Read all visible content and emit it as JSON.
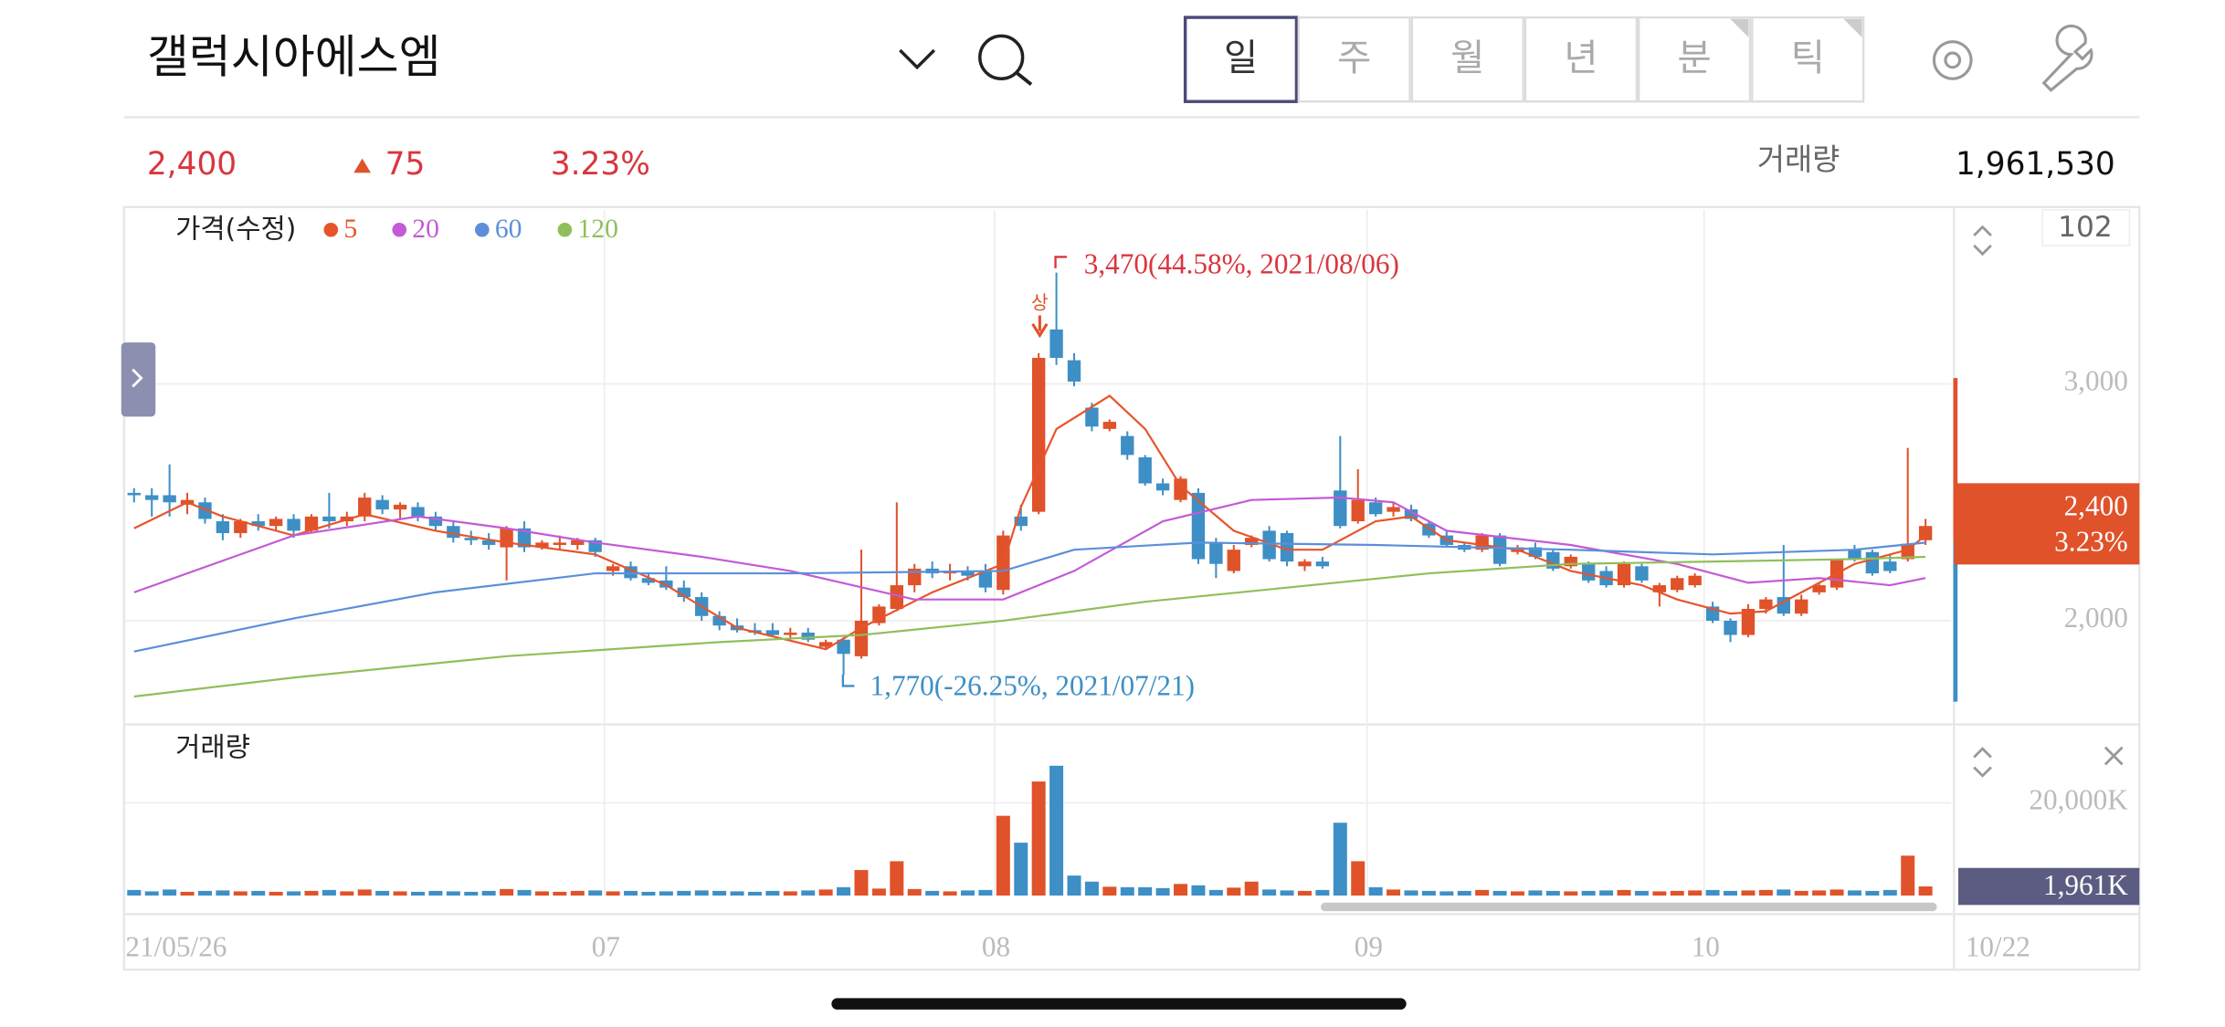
{
  "header": {
    "title": "갤럭시아에스엠",
    "tabs": [
      "일",
      "주",
      "월",
      "년",
      "분",
      "틱"
    ]
  },
  "quote": {
    "price": "2,400",
    "change": "75",
    "rate": "3.23%",
    "volume_label": "거래량",
    "volume": "1,961,530"
  },
  "annotations": {
    "high": "3,470(44.58%, 2021/08/06)",
    "low": "1,770(-26.25%, 2021/07/21)",
    "limit_up": "상",
    "counter": "102"
  },
  "chart_data": [
    {
      "type": "candlestick",
      "legend_title": "가격(수정)",
      "up_color": "#e0522a",
      "down_color": "#3d8fc6",
      "categories": [
        "21/05/26",
        null,
        null,
        null,
        null,
        null,
        null,
        null,
        null,
        null,
        null,
        null,
        null,
        null,
        null,
        null,
        null,
        null,
        null,
        null,
        null,
        null,
        null,
        null,
        null,
        null,
        null,
        "07",
        null,
        null,
        null,
        null,
        null,
        null,
        null,
        null,
        null,
        null,
        null,
        null,
        null,
        null,
        null,
        null,
        null,
        null,
        null,
        null,
        null,
        "08",
        null,
        null,
        null,
        null,
        null,
        null,
        null,
        null,
        null,
        null,
        null,
        null,
        null,
        null,
        null,
        null,
        null,
        null,
        null,
        null,
        "09",
        null,
        null,
        null,
        null,
        null,
        null,
        null,
        null,
        null,
        null,
        null,
        null,
        null,
        null,
        null,
        null,
        null,
        null,
        "10",
        null,
        null,
        null,
        null,
        null,
        null,
        null,
        null,
        null,
        null,
        null,
        "10/22"
      ],
      "open": [
        2540,
        2530,
        2530,
        2490,
        2500,
        2420,
        2370,
        2420,
        2400,
        2430,
        2380,
        2440,
        2420,
        2440,
        2510,
        2470,
        2480,
        2440,
        2400,
        2350,
        2340,
        2310,
        2390,
        2310,
        2320,
        2320,
        2340,
        2210,
        2230,
        2180,
        2170,
        2140,
        2100,
        2020,
        1980,
        1960,
        1960,
        1940,
        1950,
        1890,
        1920,
        1850,
        1990,
        2050,
        2150,
        2220,
        2200,
        2210,
        2210,
        2130,
        2440,
        2460,
        3230,
        3100,
        2900,
        2810,
        2780,
        2690,
        2580,
        2510,
        2540,
        2330,
        2210,
        2320,
        2380,
        2370,
        2230,
        2250,
        2550,
        2420,
        2500,
        2460,
        2470,
        2410,
        2360,
        2320,
        2300,
        2360,
        2290,
        2310,
        2290,
        2230,
        2240,
        2210,
        2150,
        2230,
        2120,
        2130,
        2150,
        2060,
        2000,
        1940,
        2050,
        2100,
        2030,
        2120,
        2140,
        2300,
        2290,
        2250,
        2260,
        2340
      ],
      "high": [
        2560,
        2560,
        2660,
        2540,
        2520,
        2450,
        2430,
        2450,
        2440,
        2450,
        2450,
        2540,
        2460,
        2540,
        2530,
        2500,
        2500,
        2460,
        2420,
        2380,
        2370,
        2400,
        2420,
        2340,
        2360,
        2350,
        2350,
        2240,
        2250,
        2200,
        2230,
        2170,
        2120,
        2040,
        2010,
        1990,
        1990,
        1970,
        1970,
        1920,
        1930,
        2300,
        2070,
        2500,
        2240,
        2250,
        2240,
        2230,
        2240,
        2380,
        2490,
        3130,
        3470,
        3130,
        2920,
        2850,
        2800,
        2700,
        2600,
        2610,
        2560,
        2350,
        2320,
        2360,
        2400,
        2380,
        2260,
        2270,
        2780,
        2640,
        2520,
        2500,
        2490,
        2420,
        2380,
        2330,
        2370,
        2370,
        2320,
        2330,
        2300,
        2280,
        2250,
        2230,
        2250,
        2240,
        2160,
        2190,
        2200,
        2080,
        2010,
        2070,
        2100,
        2320,
        2110,
        2160,
        2260,
        2320,
        2300,
        2280,
        2730,
        2430
      ],
      "low": [
        2500,
        2440,
        2440,
        2450,
        2410,
        2340,
        2350,
        2380,
        2380,
        2350,
        2370,
        2390,
        2400,
        2420,
        2450,
        2430,
        2420,
        2380,
        2330,
        2320,
        2300,
        2170,
        2290,
        2300,
        2300,
        2300,
        2270,
        2190,
        2170,
        2150,
        2130,
        2080,
        2000,
        1960,
        1950,
        1940,
        1930,
        1920,
        1910,
        1880,
        1770,
        1840,
        1980,
        2040,
        2120,
        2180,
        2170,
        2170,
        2120,
        2110,
        2380,
        2450,
        3080,
        2990,
        2800,
        2800,
        2680,
        2570,
        2530,
        2500,
        2240,
        2180,
        2200,
        2310,
        2250,
        2230,
        2210,
        2220,
        2390,
        2410,
        2440,
        2440,
        2420,
        2350,
        2310,
        2290,
        2290,
        2230,
        2280,
        2260,
        2210,
        2220,
        2160,
        2140,
        2140,
        2160,
        2060,
        2120,
        2140,
        1990,
        1910,
        1930,
        2030,
        2020,
        2020,
        2110,
        2130,
        2250,
        2190,
        2200,
        2250,
        2320
      ],
      "close": [
        2530,
        2510,
        2500,
        2510,
        2430,
        2370,
        2420,
        2400,
        2430,
        2380,
        2440,
        2420,
        2440,
        2520,
        2470,
        2490,
        2440,
        2400,
        2350,
        2340,
        2320,
        2390,
        2310,
        2330,
        2330,
        2340,
        2290,
        2230,
        2180,
        2160,
        2140,
        2100,
        2020,
        1980,
        1960,
        1950,
        1940,
        1950,
        1920,
        1910,
        1860,
        2000,
        2060,
        2150,
        2220,
        2200,
        2210,
        2190,
        2140,
        2360,
        2400,
        3110,
        3110,
        3010,
        2820,
        2840,
        2700,
        2580,
        2550,
        2600,
        2260,
        2240,
        2300,
        2350,
        2260,
        2250,
        2250,
        2230,
        2400,
        2510,
        2450,
        2480,
        2430,
        2360,
        2320,
        2300,
        2360,
        2240,
        2310,
        2270,
        2220,
        2270,
        2170,
        2150,
        2240,
        2170,
        2150,
        2180,
        2190,
        2000,
        1940,
        2050,
        2090,
        2030,
        2090,
        2150,
        2260,
        2260,
        2200,
        2210,
        2325,
        2400
      ],
      "series": [
        {
          "name": "5",
          "color": "#e8542a",
          "x": [
            0,
            3,
            5,
            9,
            13,
            17,
            21,
            26,
            30,
            34,
            39,
            41,
            45,
            49,
            50,
            52,
            55,
            57,
            59,
            62,
            65,
            67,
            70,
            72,
            74,
            78,
            81,
            85,
            87,
            90,
            92,
            94,
            97,
            100,
            101
          ],
          "values": [
            2390,
            2500,
            2440,
            2360,
            2450,
            2380,
            2330,
            2280,
            2150,
            1970,
            1880,
            1970,
            2120,
            2240,
            2480,
            2810,
            2950,
            2810,
            2570,
            2380,
            2300,
            2300,
            2420,
            2440,
            2340,
            2300,
            2210,
            2150,
            2090,
            2030,
            2040,
            2120,
            2240,
            2300,
            2360
          ]
        },
        {
          "name": "20",
          "color": "#c45ad6",
          "x": [
            0,
            9,
            16,
            21,
            26,
            32,
            37,
            44,
            49,
            53,
            58,
            63,
            68,
            71,
            74,
            81,
            87,
            91,
            95,
            99,
            101
          ],
          "values": [
            2120,
            2360,
            2440,
            2390,
            2330,
            2270,
            2210,
            2090,
            2090,
            2210,
            2420,
            2510,
            2520,
            2500,
            2380,
            2320,
            2240,
            2160,
            2180,
            2150,
            2180
          ]
        },
        {
          "name": "60",
          "color": "#5b8fd9",
          "x": [
            0,
            9,
            17,
            26,
            37,
            49,
            53,
            60,
            70,
            81,
            89,
            97,
            101
          ],
          "values": [
            1870,
            2010,
            2120,
            2200,
            2200,
            2210,
            2300,
            2330,
            2320,
            2300,
            2280,
            2300,
            2330
          ]
        },
        {
          "name": "120",
          "color": "#8fbf5a",
          "x": [
            0,
            9,
            21,
            33,
            41,
            49,
            57,
            65,
            73,
            81,
            89,
            97,
            101
          ],
          "values": [
            1680,
            1760,
            1850,
            1910,
            1940,
            2000,
            2080,
            2140,
            2200,
            2240,
            2250,
            2260,
            2270
          ]
        }
      ],
      "ylim": [
        1580,
        3735
      ],
      "yticks": [
        {
          "value": 2000,
          "label": "2,000"
        },
        {
          "value": 3000,
          "label": "3,000"
        }
      ],
      "grid": true,
      "last_value_label": "2,400",
      "last_change_label": "3.23%"
    },
    {
      "type": "bar",
      "title": "거래량",
      "values": [
        1200,
        900,
        1300,
        800,
        1000,
        1100,
        900,
        1000,
        800,
        900,
        1000,
        1200,
        900,
        1300,
        1000,
        900,
        800,
        1000,
        900,
        800,
        1000,
        1400,
        1200,
        900,
        800,
        1000,
        1100,
        900,
        1000,
        800,
        900,
        1000,
        1100,
        1000,
        900,
        800,
        1000,
        900,
        1100,
        1300,
        1800,
        5500,
        1500,
        7400,
        1400,
        1000,
        900,
        1100,
        1200,
        17200,
        11400,
        24600,
        28000,
        4300,
        3000,
        1900,
        1800,
        1800,
        1600,
        2500,
        2200,
        1200,
        1700,
        3000,
        1300,
        1100,
        1000,
        1200,
        15700,
        7400,
        1800,
        1300,
        1100,
        1000,
        900,
        1000,
        1200,
        1000,
        900,
        1100,
        1000,
        900,
        1000,
        1100,
        1200,
        1000,
        900,
        1000,
        1100,
        1200,
        1000,
        1100,
        1200,
        1300,
        1000,
        1100,
        1300,
        1100,
        1000,
        1200,
        8600,
        1961
      ],
      "ylim": [
        0,
        36900
      ],
      "yticks": [
        {
          "value": 20000,
          "label": "20,000K"
        }
      ],
      "last_value_label": "1,961K"
    }
  ]
}
